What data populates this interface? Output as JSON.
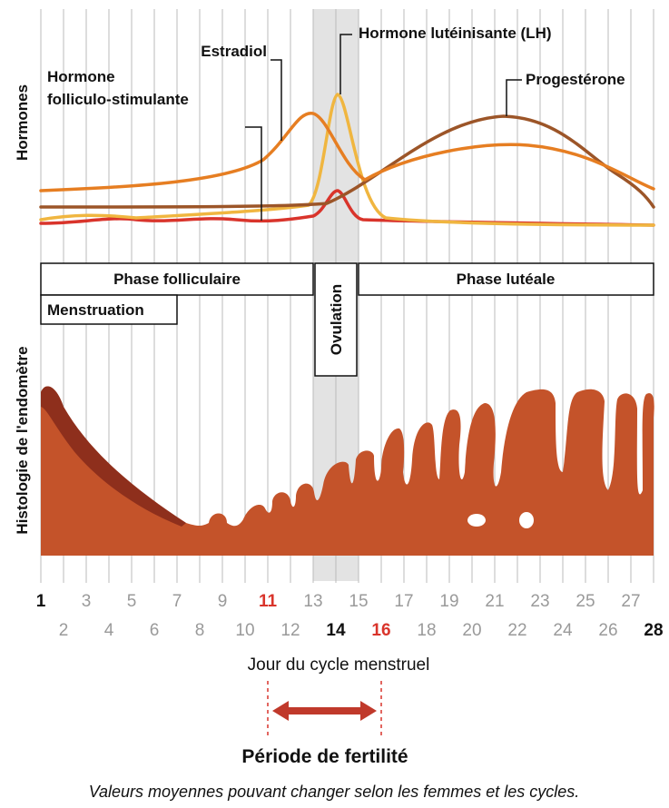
{
  "axis_labels": {
    "hormones": "Hormones",
    "histology": "Histologie de l'endomètre",
    "x": "Jour du cycle menstruel"
  },
  "hormones": {
    "fsh": [
      "Hormone",
      "folliculo-stimulante"
    ],
    "estradiol": "Estradiol",
    "lh": "Hormone lutéinisante (LH)",
    "progesterone": "Progestérone"
  },
  "phases": {
    "follicular": "Phase folliculaire",
    "ovulation": "Ovulation",
    "luteal": "Phase lutéale",
    "menstruation": "Menstruation"
  },
  "days": [
    1,
    2,
    3,
    4,
    5,
    6,
    7,
    8,
    9,
    10,
    11,
    12,
    13,
    14,
    15,
    16,
    17,
    18,
    19,
    20,
    21,
    22,
    23,
    24,
    25,
    26,
    27,
    28
  ],
  "fertility": "Période de fertilité",
  "footnote": "Valeurs moyennes pouvant changer selon les femmes et les cycles."
}
